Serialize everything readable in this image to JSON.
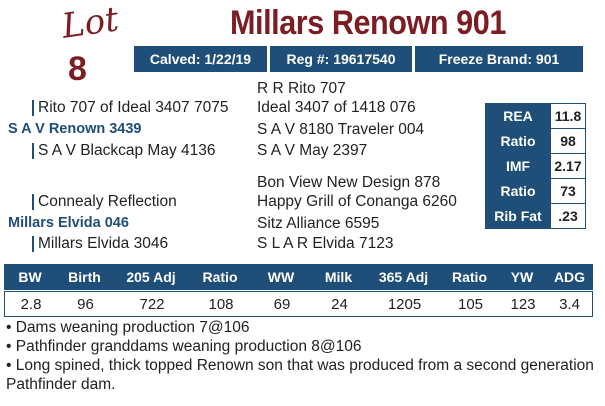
{
  "lot": {
    "word": "Lot",
    "number": "8"
  },
  "title": "Millars Renown 901",
  "info": [
    {
      "label": "Calved: 1/22/19"
    },
    {
      "label": "Reg #: 19617540"
    },
    {
      "label": "Freeze Brand: 901"
    }
  ],
  "pedigree": {
    "sire": "S A V Renown 3439",
    "sire_sire": "Rito 707 of Ideal 3407 7075",
    "sire_dam": "S A V Blackcap May 4136",
    "sss": "R R Rito 707",
    "ssd": "Ideal 3407 of 1418 076",
    "sds": "S A V 8180 Traveler 004",
    "sdd": "S A V May 2397",
    "dam": "Millars Elvida 046",
    "dam_sire": "Connealy Reflection",
    "dam_dam": "Millars Elvida 3046",
    "dss": "Bon View New Design 878",
    "dsd": "Happy Grill of Conanga 6260",
    "dds": "Sitz Alliance 6595",
    "ddd": "S L A R Elvida 7123"
  },
  "carcass": [
    {
      "label": "REA",
      "value": "11.8"
    },
    {
      "label": "Ratio",
      "value": "98"
    },
    {
      "label": "IMF",
      "value": "2.17"
    },
    {
      "label": "Ratio",
      "value": "73"
    },
    {
      "label": "Rib Fat",
      "value": ".23"
    }
  ],
  "performance": {
    "headers": [
      "BW",
      "Birth",
      "205 Adj",
      "Ratio",
      "WW",
      "Milk",
      "365 Adj",
      "Ratio",
      "YW",
      "ADG"
    ],
    "values": [
      "2.8",
      "96",
      "722",
      "108",
      "69",
      "24",
      "1205",
      "105",
      "123",
      "3.4"
    ]
  },
  "notes": [
    "• Dams weaning production 7@106",
    "• Pathfinder granddams weaning production 8@106",
    "• Long spined, thick topped Renown son that was produced from a second generation Pathfinder dam."
  ],
  "colors": {
    "maroon": "#7b1d22",
    "navy": "#1f4e79"
  }
}
